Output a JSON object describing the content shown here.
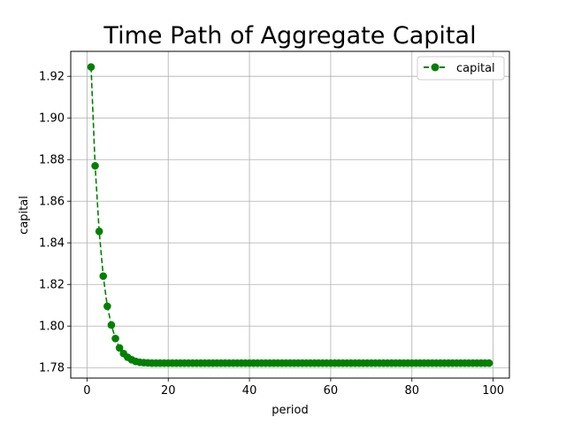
{
  "chart_data": {
    "type": "line",
    "title": "Time Path of Aggregate Capital",
    "xlabel": "period",
    "ylabel": "capital",
    "xlim": [
      -4,
      104
    ],
    "ylim": [
      1.775,
      1.932
    ],
    "xticks": [
      0,
      20,
      40,
      60,
      80,
      100
    ],
    "yticks": [
      1.78,
      1.8,
      1.82,
      1.84,
      1.86,
      1.88,
      1.9,
      1.92
    ],
    "ytick_labels": [
      "1.78",
      "1.80",
      "1.82",
      "1.84",
      "1.86",
      "1.88",
      "1.90",
      "1.92"
    ],
    "grid": true,
    "legend": "top-right",
    "series": [
      {
        "name": "capital",
        "color": "#008000",
        "linestyle": "dashed",
        "marker": "circle",
        "x": [
          1,
          2,
          3,
          4,
          5,
          6,
          7,
          8,
          9,
          10,
          11,
          12,
          13,
          14,
          15,
          16,
          17,
          18,
          19,
          20,
          21,
          22,
          23,
          24,
          25,
          26,
          27,
          28,
          29,
          30,
          31,
          32,
          33,
          34,
          35,
          36,
          37,
          38,
          39,
          40,
          41,
          42,
          43,
          44,
          45,
          46,
          47,
          48,
          49,
          50,
          51,
          52,
          53,
          54,
          55,
          56,
          57,
          58,
          59,
          60,
          61,
          62,
          63,
          64,
          65,
          66,
          67,
          68,
          69,
          70,
          71,
          72,
          73,
          74,
          75,
          76,
          77,
          78,
          79,
          80,
          81,
          82,
          83,
          84,
          85,
          86,
          87,
          88,
          89,
          90,
          91,
          92,
          93,
          94,
          95,
          96,
          97,
          98,
          99
        ],
        "values": [
          1.9245,
          1.877,
          1.8455,
          1.824,
          1.8095,
          1.8005,
          1.794,
          1.7895,
          1.7868,
          1.785,
          1.7838,
          1.783,
          1.7826,
          1.7824,
          1.7823,
          1.7822,
          1.7822,
          1.7822,
          1.7822,
          1.7822,
          1.7822,
          1.7822,
          1.7822,
          1.7822,
          1.7822,
          1.7822,
          1.7822,
          1.7822,
          1.7822,
          1.7822,
          1.7822,
          1.7822,
          1.7822,
          1.7822,
          1.7822,
          1.7822,
          1.7822,
          1.7822,
          1.7822,
          1.7822,
          1.7822,
          1.7822,
          1.7822,
          1.7822,
          1.7822,
          1.7822,
          1.7822,
          1.7822,
          1.7822,
          1.7822,
          1.7822,
          1.7822,
          1.7822,
          1.7822,
          1.7822,
          1.7822,
          1.7822,
          1.7822,
          1.7822,
          1.7822,
          1.7822,
          1.7822,
          1.7822,
          1.7822,
          1.7822,
          1.7822,
          1.7822,
          1.7822,
          1.7822,
          1.7822,
          1.7822,
          1.7822,
          1.7822,
          1.7822,
          1.7822,
          1.7822,
          1.7822,
          1.7822,
          1.7822,
          1.7822,
          1.7822,
          1.7822,
          1.7822,
          1.7822,
          1.7822,
          1.7822,
          1.7822,
          1.7822,
          1.7822,
          1.7822,
          1.7822,
          1.7822,
          1.7822,
          1.7822,
          1.7822,
          1.7822,
          1.7822,
          1.7822,
          1.7822
        ]
      }
    ]
  }
}
